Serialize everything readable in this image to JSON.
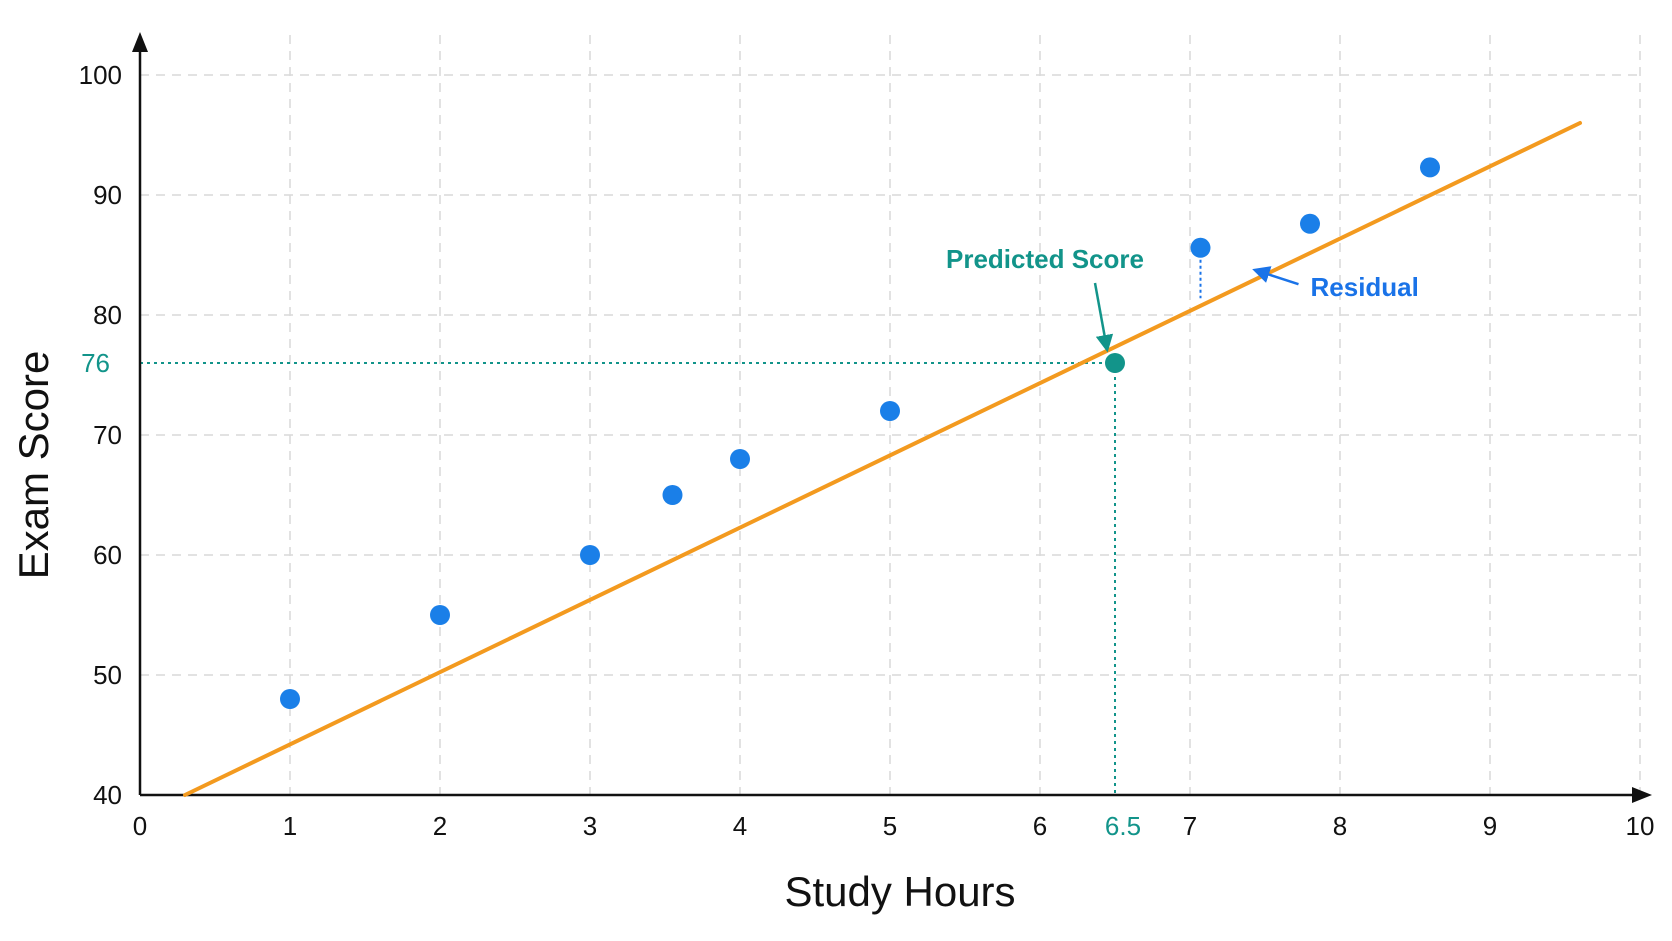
{
  "chart_data": {
    "type": "scatter",
    "title": "",
    "xlabel": "Study Hours",
    "ylabel": "Exam Score",
    "xlim": [
      0,
      10
    ],
    "ylim": [
      40,
      100
    ],
    "grid": true,
    "x_ticks": [
      {
        "value": 0,
        "label": "0"
      },
      {
        "value": 1,
        "label": "1"
      },
      {
        "value": 2,
        "label": "2"
      },
      {
        "value": 3,
        "label": "3"
      },
      {
        "value": 4,
        "label": "4"
      },
      {
        "value": 5,
        "label": "5"
      },
      {
        "value": 6,
        "label": "6"
      },
      {
        "value": 7,
        "label": "7"
      },
      {
        "value": 8,
        "label": "8"
      },
      {
        "value": 9,
        "label": "9"
      },
      {
        "value": 10,
        "label": "10"
      }
    ],
    "y_ticks": [
      {
        "value": 40,
        "label": "40"
      },
      {
        "value": 50,
        "label": "50"
      },
      {
        "value": 60,
        "label": "60"
      },
      {
        "value": 70,
        "label": "70"
      },
      {
        "value": 80,
        "label": "80"
      },
      {
        "value": 90,
        "label": "90"
      },
      {
        "value": 100,
        "label": "100"
      }
    ],
    "points": [
      {
        "x": 1.0,
        "y": 48
      },
      {
        "x": 2.0,
        "y": 55
      },
      {
        "x": 3.0,
        "y": 60
      },
      {
        "x": 3.55,
        "y": 65
      },
      {
        "x": 4.0,
        "y": 68
      },
      {
        "x": 5.0,
        "y": 72
      },
      {
        "x": 7.07,
        "y": 85.6
      },
      {
        "x": 7.8,
        "y": 87.6
      },
      {
        "x": 8.6,
        "y": 92.3
      }
    ],
    "regression_line": {
      "x1": 0.3,
      "y1": 40,
      "x2": 9.6,
      "y2": 96
    },
    "prediction": {
      "x": 6.5,
      "y": 76,
      "x_label": "6.5",
      "y_label": "76",
      "label": "Predicted Score"
    },
    "residual": {
      "x": 7.07,
      "y_point": 85.6,
      "y_line": 81.4,
      "label": "Residual"
    },
    "colors": {
      "points": "#1a7fe8",
      "line": "#f39a1f",
      "prediction": "#12948a",
      "residual": "#1a73e8",
      "grid": "#d9d9d9",
      "axis": "#111111"
    }
  }
}
